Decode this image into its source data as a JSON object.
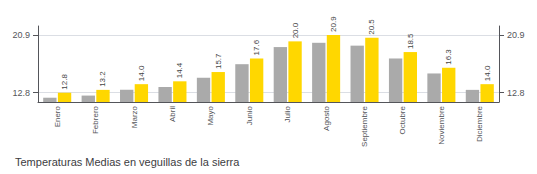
{
  "chart_data": {
    "type": "bar",
    "title": "Temperaturas Medias en veguillas de la sierra",
    "categories": [
      "Enero",
      "Febrero",
      "Marzo",
      "Abril",
      "Mayo",
      "Junio",
      "Julio",
      "Agosto",
      "Septiembre",
      "Octubre",
      "Noviembre",
      "Diciembre"
    ],
    "series": [
      {
        "color": "#AAAAAA",
        "values": [
          12.1,
          12.4,
          13.2,
          13.6,
          14.9,
          16.8,
          19.2,
          19.8,
          19.4,
          17.6,
          15.5,
          13.2
        ]
      },
      {
        "color": "#FFD700",
        "values": [
          12.8,
          13.2,
          14.0,
          14.4,
          15.7,
          17.6,
          20.0,
          20.9,
          20.5,
          18.5,
          16.3,
          14.0
        ],
        "data_labels": true,
        "value_labels": [
          "12.8",
          "13.2",
          "14.0",
          "14.4",
          "15.7",
          "17.6",
          "20.0",
          "20.9",
          "20.5",
          "18.5",
          "16.3",
          "14.0"
        ]
      }
    ],
    "ylim": [
      11.5,
      22.154
    ],
    "yticks": [
      12.8,
      20.9
    ],
    "y2lim": [
      11.5,
      22.154
    ],
    "y2ticks": [
      12.8,
      20.9
    ],
    "grid": true
  }
}
